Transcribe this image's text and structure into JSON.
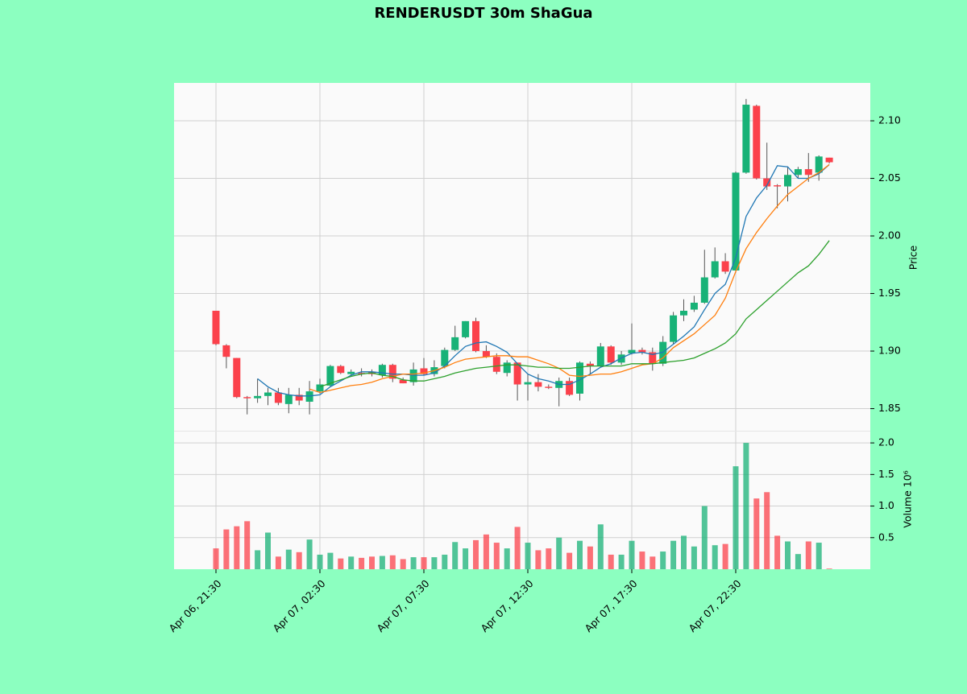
{
  "chart_data": {
    "type": "candlestick",
    "title": "RENDERUSDT 30m ShaGua",
    "ylabel": "Price",
    "volume_label": "Volume  10⁶",
    "categories": [
      "Apr 06, 21:30",
      null,
      null,
      null,
      null,
      null,
      null,
      null,
      null,
      null,
      "Apr 07, 02:30",
      null,
      null,
      null,
      null,
      null,
      null,
      null,
      null,
      null,
      "Apr 07, 07:30",
      null,
      null,
      null,
      null,
      null,
      null,
      null,
      null,
      null,
      "Apr 07, 12:30",
      null,
      null,
      null,
      null,
      null,
      null,
      null,
      null,
      null,
      "Apr 07, 17:30",
      null,
      null,
      null,
      null,
      null,
      null,
      null,
      null,
      null,
      "Apr 07, 22:30",
      null,
      null,
      null,
      null,
      null,
      null,
      null,
      null,
      null
    ],
    "open": [
      1.935,
      1.905,
      1.894,
      1.86,
      1.859,
      1.861,
      1.864,
      1.854,
      1.862,
      1.856,
      1.865,
      1.87,
      1.887,
      1.88,
      1.881,
      1.882,
      1.879,
      1.888,
      1.875,
      1.873,
      1.885,
      1.88,
      1.887,
      1.901,
      1.912,
      1.926,
      1.9,
      1.895,
      1.881,
      1.89,
      1.871,
      1.873,
      1.869,
      1.868,
      1.874,
      1.863,
      1.889,
      1.887,
      1.904,
      1.89,
      1.898,
      1.901,
      1.899,
      1.889,
      1.908,
      1.931,
      1.936,
      1.942,
      1.964,
      1.978,
      1.97,
      2.055,
      2.113,
      2.05,
      2.044,
      2.043,
      2.053,
      2.058,
      2.055,
      2.068
    ],
    "high": [
      1.935,
      1.906,
      1.894,
      1.861,
      1.876,
      1.868,
      1.868,
      1.868,
      1.868,
      1.874,
      1.876,
      1.888,
      1.888,
      1.884,
      1.885,
      1.884,
      1.889,
      1.889,
      1.877,
      1.89,
      1.894,
      1.892,
      1.903,
      1.922,
      1.926,
      1.929,
      1.905,
      1.898,
      1.892,
      1.89,
      1.88,
      1.88,
      1.871,
      1.877,
      1.877,
      1.891,
      1.891,
      1.907,
      1.905,
      1.9,
      1.924,
      1.903,
      1.903,
      1.913,
      1.934,
      1.945,
      1.948,
      1.988,
      1.99,
      1.985,
      2.056,
      2.119,
      2.114,
      2.081,
      2.045,
      2.06,
      2.06,
      2.072,
      2.07,
      2.068
    ],
    "low": [
      1.905,
      1.885,
      1.859,
      1.845,
      1.855,
      1.853,
      1.853,
      1.846,
      1.853,
      1.845,
      1.863,
      1.869,
      1.88,
      1.878,
      1.878,
      1.878,
      1.877,
      1.873,
      1.872,
      1.87,
      1.879,
      1.878,
      1.885,
      1.9,
      1.911,
      1.899,
      1.894,
      1.88,
      1.878,
      1.857,
      1.857,
      1.865,
      1.867,
      1.852,
      1.861,
      1.857,
      1.88,
      1.886,
      1.888,
      1.888,
      1.897,
      1.897,
      1.883,
      1.887,
      1.906,
      1.926,
      1.934,
      1.941,
      1.963,
      1.967,
      1.968,
      2.054,
      2.049,
      2.04,
      2.024,
      2.03,
      2.05,
      2.047,
      2.048,
      2.063
    ],
    "close": [
      1.906,
      1.895,
      1.86,
      1.859,
      1.861,
      1.864,
      1.855,
      1.862,
      1.857,
      1.865,
      1.871,
      1.887,
      1.881,
      1.882,
      1.88,
      1.88,
      1.888,
      1.876,
      1.872,
      1.884,
      1.88,
      1.886,
      1.901,
      1.912,
      1.926,
      1.9,
      1.895,
      1.882,
      1.89,
      1.871,
      1.873,
      1.869,
      1.868,
      1.874,
      1.862,
      1.89,
      1.887,
      1.904,
      1.89,
      1.897,
      1.901,
      1.899,
      1.889,
      1.908,
      1.931,
      1.935,
      1.942,
      1.964,
      1.978,
      1.969,
      2.055,
      2.114,
      2.05,
      2.043,
      2.043,
      2.053,
      2.058,
      2.053,
      2.069,
      2.064
    ],
    "volume": [
      0.33,
      0.63,
      0.68,
      0.76,
      0.3,
      0.58,
      0.2,
      0.31,
      0.27,
      0.47,
      0.23,
      0.26,
      0.17,
      0.2,
      0.18,
      0.2,
      0.21,
      0.22,
      0.16,
      0.19,
      0.19,
      0.19,
      0.23,
      0.43,
      0.33,
      0.46,
      0.55,
      0.42,
      0.33,
      0.67,
      0.42,
      0.3,
      0.33,
      0.5,
      0.26,
      0.45,
      0.36,
      0.71,
      0.23,
      0.23,
      0.45,
      0.28,
      0.2,
      0.28,
      0.45,
      0.53,
      0.36,
      1.0,
      0.38,
      0.4,
      1.63,
      2.0,
      1.12,
      1.22,
      0.53,
      0.44,
      0.24,
      0.44,
      0.42,
      0.01
    ],
    "up_color": "#18b277",
    "down_color": "#fb414b",
    "series": [
      {
        "color": "#1f77b4",
        "values": [
          null,
          null,
          null,
          null,
          1.876,
          1.869,
          1.864,
          1.862,
          1.861,
          1.861,
          1.862,
          1.869,
          1.874,
          1.879,
          1.882,
          1.882,
          1.881,
          1.88,
          1.88,
          1.879,
          1.879,
          1.881,
          1.887,
          1.896,
          1.904,
          1.907,
          1.908,
          1.904,
          1.899,
          1.889,
          1.88,
          1.876,
          1.874,
          1.871,
          1.871,
          1.875,
          1.88,
          1.886,
          1.889,
          1.894,
          1.898,
          1.899,
          1.897,
          1.899,
          1.906,
          1.913,
          1.921,
          1.936,
          1.95,
          1.958,
          1.981,
          2.017,
          2.033,
          2.044,
          2.061,
          2.06,
          2.05,
          2.05,
          2.054,
          2.062
        ]
      },
      {
        "color": "#ff7f0e",
        "values": [
          null,
          null,
          null,
          null,
          null,
          null,
          null,
          null,
          null,
          1.867,
          1.864,
          1.866,
          1.868,
          1.87,
          1.871,
          1.873,
          1.876,
          1.878,
          1.88,
          1.88,
          1.881,
          1.883,
          1.886,
          1.89,
          1.893,
          1.894,
          1.895,
          1.896,
          1.896,
          1.895,
          1.895,
          1.892,
          1.889,
          1.885,
          1.879,
          1.878,
          1.879,
          1.88,
          1.88,
          1.882,
          1.885,
          1.888,
          1.889,
          1.894,
          1.903,
          1.909,
          1.915,
          1.923,
          1.931,
          1.946,
          1.969,
          1.989,
          2.003,
          2.015,
          2.026,
          2.036,
          2.043,
          2.05,
          2.055,
          2.062
        ]
      },
      {
        "color": "#2ca02c",
        "values": [
          null,
          null,
          null,
          null,
          null,
          null,
          null,
          null,
          null,
          null,
          1.869,
          1.872,
          1.875,
          1.878,
          1.88,
          1.881,
          1.879,
          1.878,
          1.875,
          1.874,
          1.874,
          1.876,
          1.878,
          1.881,
          1.883,
          1.885,
          1.886,
          1.887,
          1.888,
          1.888,
          1.887,
          1.886,
          1.886,
          1.885,
          1.885,
          1.886,
          1.887,
          1.887,
          1.887,
          1.887,
          1.889,
          1.889,
          1.889,
          1.89,
          1.891,
          1.892,
          1.894,
          1.898,
          1.902,
          1.907,
          1.915,
          1.928,
          1.936,
          1.944,
          1.952,
          1.96,
          1.968,
          1.974,
          1.984,
          1.996
        ]
      }
    ],
    "ylim": [
      1.8308,
      2.1329
    ],
    "yticks": [
      1.85,
      {
        "value": 1.9,
        "label": "1.90"
      },
      1.95,
      {
        "value": 2.0,
        "label": "2.00"
      },
      2.05,
      {
        "value": 2.1,
        "label": "2.10"
      }
    ],
    "volume_ylim": [
      0,
      2.18
    ],
    "volume_ticks": [
      0.5,
      {
        "value": 1.0,
        "label": "1.0"
      },
      1.5,
      {
        "value": 2.0,
        "label": "2.0"
      }
    ],
    "grid": true
  }
}
